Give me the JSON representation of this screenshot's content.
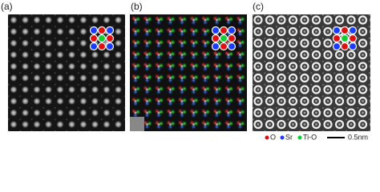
{
  "panels": [
    {
      "label": "(a)"
    },
    {
      "label": "(b)"
    },
    {
      "label": "(c)"
    }
  ],
  "legend": [
    {
      "label": "O"
    },
    {
      "label": "Sr"
    },
    {
      "label": "Ti-O"
    }
  ],
  "scale_bar": {
    "label": "0.5nm"
  }
}
